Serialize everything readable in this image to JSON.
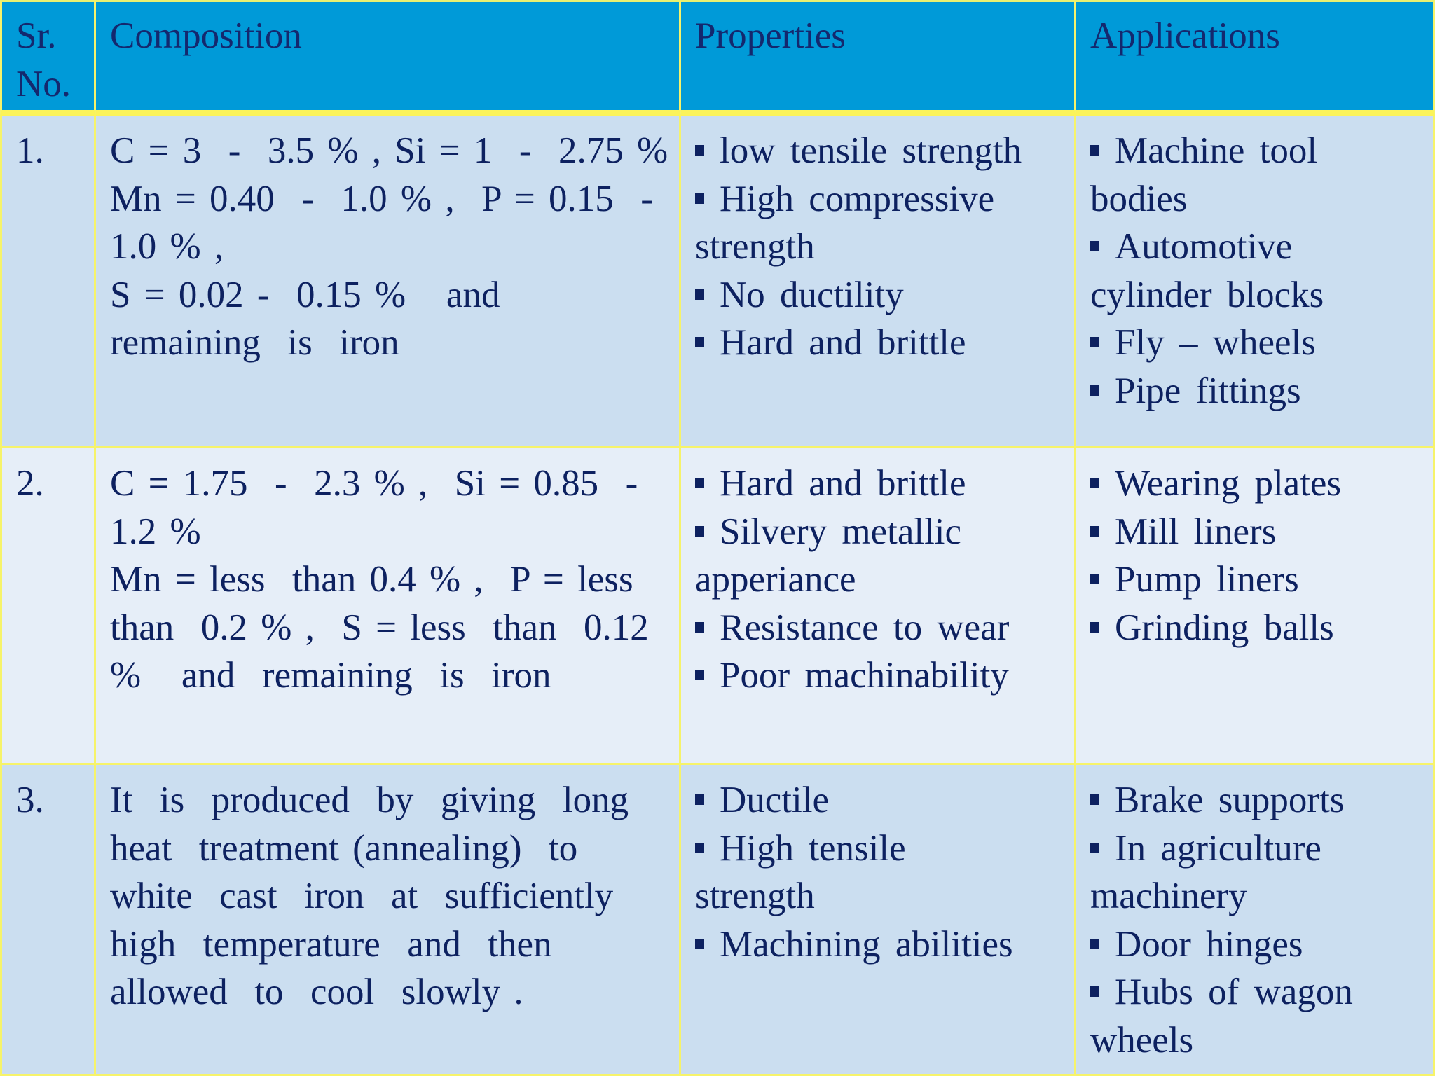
{
  "headers": {
    "sr_no": "Sr.\nNo.",
    "sr_no_line1": "Sr.",
    "sr_no_line2": "No.",
    "composition": "Composition",
    "properties": "Properties",
    "applications": "Applications"
  },
  "rows": [
    {
      "sr": "1.",
      "composition_lines": [
        "C = 3  -  3.5 % , Si = 1  -  2.75 %",
        "Mn = 0.40  -  1.0 % ,  P = 0.15  -",
        "1.0 % ,",
        "S = 0.02 -  0.15 %   and",
        "remaining  is  iron"
      ],
      "properties": [
        {
          "text": "low  tensile  strength",
          "bullet": true
        },
        {
          "text": "High  compressive",
          "bullet": true
        },
        {
          "text": "strength",
          "bullet": false
        },
        {
          "text": "No  ductility",
          "bullet": true
        },
        {
          "text": "Hard  and  brittle",
          "bullet": true
        }
      ],
      "applications": [
        {
          "text": "Machine  tool",
          "bullet": true
        },
        {
          "text": "bodies",
          "bullet": false
        },
        {
          "text": "Automotive",
          "bullet": true
        },
        {
          "text": "cylinder  blocks",
          "bullet": false
        },
        {
          "text": "Fly – wheels",
          "bullet": true
        },
        {
          "text": "Pipe  fittings",
          "bullet": true
        }
      ]
    },
    {
      "sr": "2.",
      "composition_lines": [
        "C = 1.75  -  2.3 % ,  Si = 0.85  -",
        "1.2 %",
        "Mn = less  than 0.4 % ,  P = less",
        "than  0.2 % ,  S = less  than  0.12",
        "%   and  remaining  is  iron"
      ],
      "properties": [
        {
          "text": "Hard  and  brittle",
          "bullet": true
        },
        {
          "text": "Silvery  metallic",
          "bullet": true
        },
        {
          "text": "apperiance",
          "bullet": false
        },
        {
          "text": "Resistance  to  wear",
          "bullet": true
        },
        {
          "text": "Poor  machinability",
          "bullet": true
        }
      ],
      "applications": [
        {
          "text": "Wearing  plates",
          "bullet": true
        },
        {
          "text": "Mill  liners",
          "bullet": true
        },
        {
          "text": "Pump  liners",
          "bullet": true
        },
        {
          "text": "Grinding  balls",
          "bullet": true
        }
      ]
    },
    {
      "sr": "3.",
      "composition_lines": [
        "It  is  produced  by  giving  long",
        "heat  treatment (annealing)  to",
        "white  cast  iron  at  sufficiently",
        "high  temperature  and  then",
        "allowed  to  cool  slowly ."
      ],
      "properties": [
        {
          "text": "Ductile",
          "bullet": true
        },
        {
          "text": "High  tensile",
          "bullet": true
        },
        {
          "text": "strength",
          "bullet": false
        },
        {
          "text": "Machining  abilities",
          "bullet": true
        }
      ],
      "applications": [
        {
          "text": "Brake  supports",
          "bullet": true
        },
        {
          "text": "In  agriculture",
          "bullet": true
        },
        {
          "text": "machinery",
          "bullet": false
        },
        {
          "text": "Door  hinges",
          "bullet": true
        },
        {
          "text": "Hubs  of  wagon",
          "bullet": true
        },
        {
          "text": "wheels",
          "bullet": false
        }
      ]
    }
  ],
  "colors": {
    "header_bg": "#009ad8",
    "row_odd_bg": "#cbdef0",
    "row_even_bg": "#e6eef8",
    "border": "#f6f36a",
    "text": "#0d2160"
  }
}
